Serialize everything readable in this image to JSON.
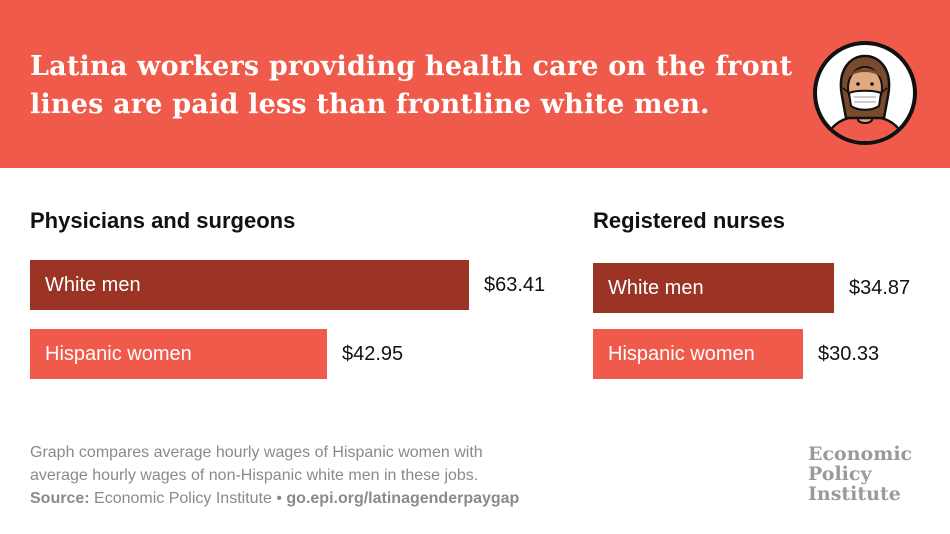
{
  "headline": {
    "line1": "Latina workers providing health care on the front",
    "line2": "lines are paid less than frontline white men."
  },
  "avatar_icon": "masked-health-worker-icon",
  "colors": {
    "banner": "#f05a4a",
    "white_men_bar": "#9b3424",
    "hispanic_women_bar": "#f05a4a",
    "footnote_text": "#8a8a8a"
  },
  "chart_data": [
    {
      "type": "bar",
      "orientation": "horizontal",
      "title": "Physicians and surgeons",
      "categories": [
        "White men",
        "Hispanic women"
      ],
      "values": [
        63.41,
        42.95
      ],
      "value_labels": [
        "$63.41",
        "$42.95"
      ],
      "unit": "USD per hour"
    },
    {
      "type": "bar",
      "orientation": "horizontal",
      "title": "Registered nurses",
      "categories": [
        "White men",
        "Hispanic women"
      ],
      "values": [
        34.87,
        30.33
      ],
      "value_labels": [
        "$34.87",
        "$30.33"
      ],
      "unit": "USD per hour"
    }
  ],
  "footnote": {
    "line1": "Graph compares average hourly wages of Hispanic women with",
    "line2": "average hourly wages of non-Hispanic white men in these jobs.",
    "source_label": "Source:",
    "source_text": "Economic Policy Institute",
    "separator": "•",
    "source_url": "go.epi.org/latinagenderpaygap"
  },
  "brand": {
    "line1": "Economic",
    "line2": "Policy",
    "line3": "Institute"
  }
}
